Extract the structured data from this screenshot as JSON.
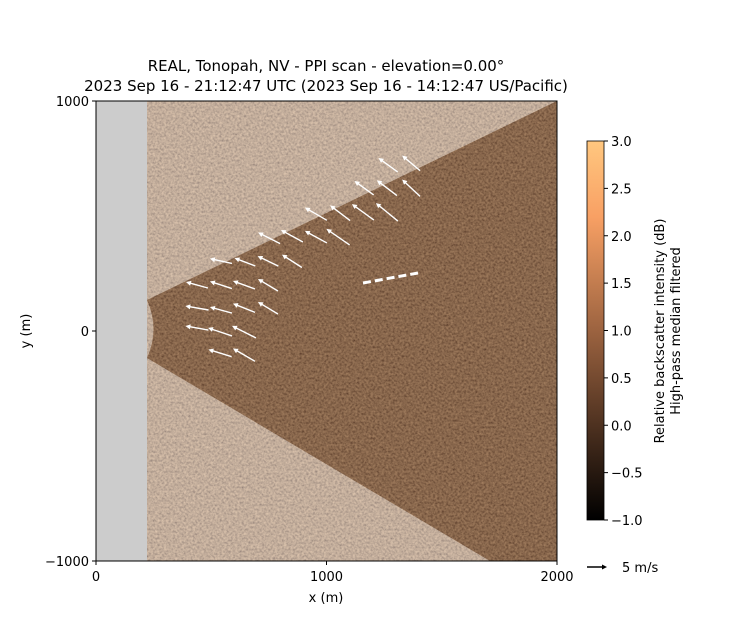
{
  "chart_data": {
    "type": "ppi",
    "title": "REAL, Tonopah, NV - PPI scan - elevation=0.00°",
    "subtitle": "2023 Sep 16 - 21:12:47 UTC (2023 Sep 16 - 14:12:47 US/Pacific)",
    "x_label": "x (m)",
    "y_label": "y (m)",
    "xlim": [
      0,
      2000
    ],
    "ylim": [
      -1000,
      1000
    ],
    "xticks": [
      0,
      1000,
      2000
    ],
    "yticks": [
      {
        "value": -1000,
        "label": "−1000"
      },
      0,
      1000
    ],
    "colorbar": {
      "label": "Relative backscatter intensity (dB)",
      "sublabel": "High-pass median filtered",
      "lim": [
        -1,
        3
      ],
      "ticks": [
        {
          "value": -1,
          "label": "−1.0"
        },
        {
          "value": -0.5,
          "label": "−0.5"
        },
        {
          "value": 0,
          "label": "0.0"
        },
        {
          "value": 0.5,
          "label": "0.5"
        },
        {
          "value": 1,
          "label": "1.0"
        },
        {
          "value": 1.5,
          "label": "1.5"
        },
        {
          "value": 2,
          "label": "2.0"
        },
        {
          "value": 2.5,
          "label": "2.5"
        },
        {
          "value": 3,
          "label": "3.0"
        }
      ]
    },
    "vector_color": "#ffffff",
    "vectors": {
      "x": [
        438,
        538,
        642,
        642,
        538,
        438,
        542,
        642,
        746,
        438,
        542,
        642,
        746,
        542,
        646,
        746,
        850,
        751,
        850,
        954,
        1050,
        954,
        1059,
        1158,
        1262,
        1163,
        1262,
        1367,
        1267,
        1367
      ],
      "y": [
        13,
        -4,
        -4,
        -104,
        -96,
        100,
        91,
        100,
        100,
        200,
        200,
        200,
        200,
        304,
        300,
        304,
        304,
        404,
        413,
        409,
        409,
        509,
        513,
        517,
        517,
        622,
        622,
        622,
        722,
        730
      ],
      "u": [
        -5.75,
        -6,
        -6,
        -5.5,
        -5.8,
        -5.8,
        -5.5,
        -5.5,
        -5,
        -5.5,
        -5.5,
        -5.5,
        -5,
        -5.5,
        -5.2,
        -5.2,
        -5,
        -5.5,
        -5.5,
        -5.5,
        -5.8,
        -5.5,
        -5,
        -5.5,
        -5.5,
        -4.8,
        -5,
        -4.5,
        -4.8,
        -4.5
      ],
      "v": [
        1,
        2,
        3,
        3.2,
        1.8,
        1,
        1.5,
        2.2,
        3,
        1.5,
        1.8,
        2,
        3,
        1.2,
        2,
        2.5,
        3.2,
        2.8,
        3,
        3,
        4,
        3.2,
        3.8,
        4,
        4.5,
        3.5,
        3.8,
        4.2,
        3.5,
        3.8
      ]
    },
    "key_speed": 5,
    "key_label": "5 m/s"
  }
}
